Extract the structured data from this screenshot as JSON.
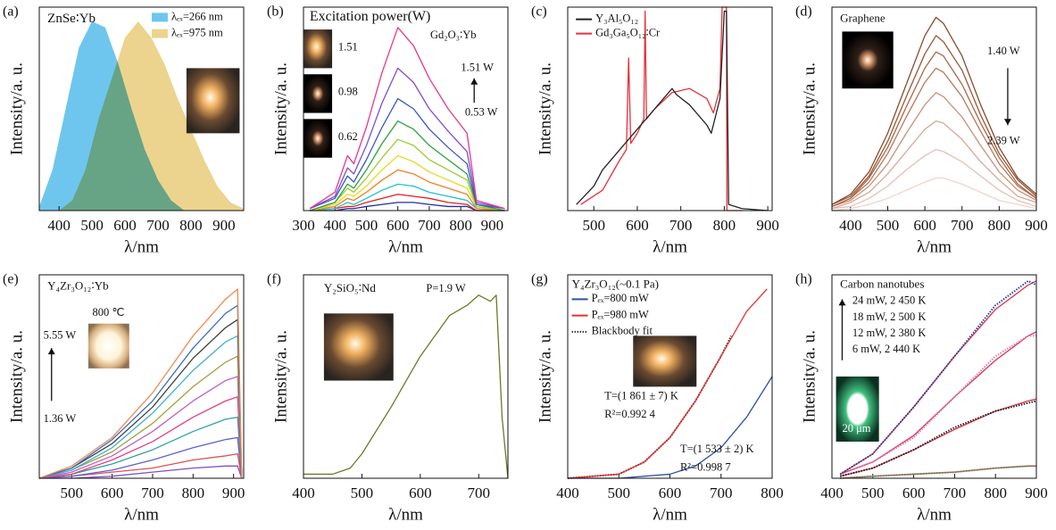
{
  "chart_data": [
    {
      "type": "area",
      "panel": "(a)",
      "title": "ZnSe∶Yb",
      "x_label": "λ/nm",
      "y_label": "Intensity/a. u.",
      "xlim": [
        340,
        960
      ],
      "xticks": [
        400,
        500,
        600,
        700,
        800,
        900
      ],
      "ylim": [
        0,
        1
      ],
      "annotations": [],
      "series": [
        {
          "name": "λₑₓ=266 nm",
          "color": "#6ec6ee",
          "x": [
            340,
            380,
            420,
            460,
            500,
            540,
            580,
            620,
            660,
            700,
            740,
            780
          ],
          "values": [
            0.02,
            0.2,
            0.5,
            0.8,
            0.93,
            0.9,
            0.72,
            0.5,
            0.3,
            0.15,
            0.05,
            0.0
          ]
        },
        {
          "name": "λₑₓ=975 nm",
          "color": "#ecd48e",
          "x": [
            400,
            440,
            480,
            520,
            560,
            600,
            640,
            680,
            720,
            760,
            800,
            840,
            880,
            920,
            960
          ],
          "values": [
            0.0,
            0.05,
            0.2,
            0.45,
            0.65,
            0.85,
            0.93,
            0.85,
            0.72,
            0.55,
            0.4,
            0.25,
            0.12,
            0.04,
            0.01
          ]
        }
      ]
    },
    {
      "type": "line",
      "panel": "(b)",
      "title": "Excitation power(W)",
      "x_label": "λ/nm",
      "y_label": "Intensity/a. u.",
      "xlim": [
        300,
        950
      ],
      "xticks": [
        300,
        400,
        500,
        600,
        700,
        800,
        900
      ],
      "ylim": [
        0,
        1
      ],
      "annotations": [
        "Gd₂O₃∶Yb",
        "1.51 W",
        "0.53 W",
        "1.51",
        "0.98",
        "0.62"
      ],
      "x": [
        320,
        400,
        440,
        460,
        500,
        550,
        600,
        650,
        700,
        760,
        820,
        850,
        940
      ],
      "series": [
        {
          "color": "#e8388a",
          "values": [
            0.01,
            0.09,
            0.27,
            0.23,
            0.41,
            0.68,
            0.9,
            0.81,
            0.65,
            0.5,
            0.38,
            0.05,
            0.01
          ]
        },
        {
          "color": "#7b4fd0",
          "values": [
            0.01,
            0.07,
            0.21,
            0.18,
            0.32,
            0.53,
            0.7,
            0.63,
            0.5,
            0.39,
            0.29,
            0.04,
            0.01
          ]
        },
        {
          "color": "#3a56c8",
          "values": [
            0.01,
            0.06,
            0.17,
            0.14,
            0.25,
            0.41,
            0.55,
            0.5,
            0.4,
            0.31,
            0.23,
            0.03,
            0.01
          ]
        },
        {
          "color": "#2ca040",
          "values": [
            0.0,
            0.04,
            0.13,
            0.11,
            0.2,
            0.33,
            0.44,
            0.4,
            0.32,
            0.25,
            0.18,
            0.03,
            0.0
          ]
        },
        {
          "color": "#9acd32",
          "values": [
            0.0,
            0.04,
            0.11,
            0.09,
            0.16,
            0.26,
            0.35,
            0.32,
            0.25,
            0.2,
            0.15,
            0.02,
            0.0
          ]
        },
        {
          "color": "#e8d820",
          "values": [
            0.0,
            0.03,
            0.08,
            0.07,
            0.12,
            0.2,
            0.27,
            0.24,
            0.19,
            0.15,
            0.11,
            0.02,
            0.0
          ]
        },
        {
          "color": "#f08020",
          "values": [
            0.0,
            0.02,
            0.06,
            0.05,
            0.09,
            0.15,
            0.2,
            0.18,
            0.14,
            0.11,
            0.08,
            0.01,
            0.0
          ]
        },
        {
          "color": "#20c0d0",
          "values": [
            0.0,
            0.01,
            0.04,
            0.03,
            0.06,
            0.1,
            0.13,
            0.12,
            0.09,
            0.07,
            0.05,
            0.01,
            0.0
          ]
        },
        {
          "color": "#e02020",
          "values": [
            0.0,
            0.01,
            0.02,
            0.02,
            0.04,
            0.06,
            0.08,
            0.07,
            0.06,
            0.04,
            0.03,
            0.0,
            0.0
          ]
        },
        {
          "color": "#2030a0",
          "values": [
            0.0,
            0.0,
            0.01,
            0.01,
            0.02,
            0.03,
            0.04,
            0.04,
            0.03,
            0.02,
            0.02,
            0.0,
            0.0
          ]
        }
      ]
    },
    {
      "type": "line",
      "panel": "(c)",
      "x_label": "λ/nm",
      "y_label": "Intensity/a. u.",
      "xlim": [
        440,
        910
      ],
      "xticks": [
        500,
        600,
        700,
        800,
        900
      ],
      "ylim": [
        0,
        1
      ],
      "annotations": [],
      "series": [
        {
          "name": "Y₃Al₅O₁₂",
          "color": "#222222",
          "x": [
            460,
            500,
            520,
            560,
            600,
            640,
            680,
            690,
            720,
            760,
            770,
            790,
            800,
            805,
            810,
            840,
            900
          ],
          "values": [
            0.03,
            0.12,
            0.2,
            0.3,
            0.4,
            0.5,
            0.6,
            0.57,
            0.52,
            0.42,
            0.38,
            0.55,
            0.98,
            0.98,
            0.03,
            0.01,
            0.0
          ]
        },
        {
          "name": "Gd₃Ga₅O₁₂∶Cr",
          "color": "#e8303a",
          "x": [
            470,
            520,
            560,
            575,
            580,
            585,
            600,
            615,
            618,
            621,
            640,
            680,
            720,
            760,
            775,
            790,
            795,
            805,
            806,
            840
          ],
          "values": [
            0.03,
            0.1,
            0.25,
            0.3,
            0.75,
            0.33,
            0.38,
            0.45,
            0.98,
            0.45,
            0.5,
            0.58,
            0.6,
            0.55,
            0.48,
            0.6,
            1.0,
            1.0,
            0.0,
            0.0
          ]
        }
      ]
    },
    {
      "type": "line",
      "panel": "(d)",
      "title": "Graphene",
      "x_label": "λ/nm",
      "y_label": "Intensity/a. u.",
      "xlim": [
        350,
        900
      ],
      "xticks": [
        400,
        500,
        600,
        700,
        800,
        900
      ],
      "ylim": [
        0,
        1
      ],
      "annotations": [
        "1.40 W",
        "2.39 W"
      ],
      "x": [
        350,
        400,
        450,
        500,
        550,
        600,
        630,
        650,
        700,
        750,
        800,
        850,
        900
      ],
      "series": [
        {
          "color": "#8a4a2a",
          "values": [
            0.03,
            0.08,
            0.19,
            0.38,
            0.62,
            0.86,
            0.95,
            0.92,
            0.76,
            0.52,
            0.31,
            0.16,
            0.08
          ]
        },
        {
          "color": "#985838",
          "values": [
            0.03,
            0.07,
            0.17,
            0.34,
            0.56,
            0.77,
            0.86,
            0.83,
            0.69,
            0.47,
            0.28,
            0.15,
            0.07
          ]
        },
        {
          "color": "#a86848",
          "values": [
            0.02,
            0.06,
            0.16,
            0.31,
            0.51,
            0.7,
            0.78,
            0.76,
            0.62,
            0.43,
            0.26,
            0.13,
            0.06
          ]
        },
        {
          "color": "#b8785a",
          "values": [
            0.02,
            0.06,
            0.14,
            0.28,
            0.46,
            0.63,
            0.7,
            0.68,
            0.56,
            0.39,
            0.23,
            0.12,
            0.06
          ]
        },
        {
          "color": "#c8907a",
          "values": [
            0.02,
            0.05,
            0.12,
            0.23,
            0.38,
            0.52,
            0.58,
            0.56,
            0.46,
            0.32,
            0.19,
            0.1,
            0.05
          ]
        },
        {
          "color": "#d8a898",
          "values": [
            0.01,
            0.04,
            0.09,
            0.18,
            0.29,
            0.4,
            0.44,
            0.43,
            0.35,
            0.24,
            0.15,
            0.07,
            0.04
          ]
        },
        {
          "color": "#e6c0b4",
          "values": [
            0.01,
            0.02,
            0.06,
            0.12,
            0.2,
            0.27,
            0.3,
            0.29,
            0.24,
            0.17,
            0.1,
            0.05,
            0.02
          ]
        },
        {
          "color": "#f0d4cc",
          "values": [
            0.0,
            0.01,
            0.03,
            0.06,
            0.1,
            0.14,
            0.16,
            0.16,
            0.13,
            0.09,
            0.05,
            0.03,
            0.01
          ]
        }
      ]
    },
    {
      "type": "line",
      "panel": "(e)",
      "title": "Y₄Zr₃O₁₂∶Yb",
      "x_label": "λ/nm",
      "y_label": "Intensity/a. u.",
      "xlim": [
        420,
        925
      ],
      "xticks": [
        500,
        600,
        700,
        800,
        900
      ],
      "ylim": [
        0,
        1
      ],
      "annotations": [
        "800 ℃",
        "5.55 W",
        "1.36 W"
      ],
      "x": [
        420,
        500,
        600,
        700,
        800,
        880,
        910,
        920
      ],
      "series": [
        {
          "color": "#f08a50",
          "values": [
            0,
            0.06,
            0.2,
            0.42,
            0.7,
            0.88,
            0.93,
            0
          ]
        },
        {
          "color": "#3a6ec0",
          "values": [
            0,
            0.05,
            0.19,
            0.38,
            0.64,
            0.81,
            0.85,
            0
          ]
        },
        {
          "color": "#404040",
          "values": [
            0,
            0.05,
            0.17,
            0.35,
            0.59,
            0.74,
            0.78,
            0
          ]
        },
        {
          "color": "#40b0d0",
          "values": [
            0,
            0.04,
            0.15,
            0.32,
            0.53,
            0.67,
            0.7,
            0
          ]
        },
        {
          "color": "#a0a040",
          "values": [
            0,
            0.04,
            0.13,
            0.27,
            0.45,
            0.57,
            0.6,
            0
          ]
        },
        {
          "color": "#c060c0",
          "values": [
            0,
            0.03,
            0.11,
            0.23,
            0.38,
            0.48,
            0.5,
            0
          ]
        },
        {
          "color": "#e04080",
          "values": [
            0,
            0.02,
            0.09,
            0.18,
            0.3,
            0.38,
            0.4,
            0
          ]
        },
        {
          "color": "#30a0a0",
          "values": [
            0,
            0.02,
            0.07,
            0.14,
            0.23,
            0.29,
            0.3,
            0
          ]
        },
        {
          "color": "#6060d0",
          "values": [
            0,
            0.01,
            0.04,
            0.09,
            0.15,
            0.19,
            0.2,
            0
          ]
        },
        {
          "color": "#e05050",
          "values": [
            0,
            0.01,
            0.03,
            0.05,
            0.09,
            0.11,
            0.12,
            0
          ]
        },
        {
          "color": "#8050c0",
          "values": [
            0,
            0,
            0.01,
            0.03,
            0.05,
            0.06,
            0.06,
            0
          ]
        }
      ]
    },
    {
      "type": "line",
      "panel": "(f)",
      "title": "Y₂SiO₅∶Nd",
      "x_label": "λ/nm",
      "y_label": "Intensity/a. u.",
      "xlim": [
        400,
        750
      ],
      "xticks": [
        400,
        500,
        600,
        700
      ],
      "ylim": [
        0,
        1
      ],
      "annotations": [
        "P=1.9 W"
      ],
      "series": [
        {
          "color": "#6b7a2a",
          "x": [
            400,
            450,
            480,
            500,
            550,
            600,
            650,
            680,
            700,
            720,
            730,
            740,
            750
          ],
          "values": [
            0.02,
            0.02,
            0.05,
            0.12,
            0.35,
            0.6,
            0.8,
            0.85,
            0.9,
            0.87,
            0.9,
            0.3,
            0.0
          ]
        }
      ]
    },
    {
      "type": "line",
      "panel": "(g)",
      "title": "Y₄Zr₃O₁₂(~0.1 Pa)",
      "x_label": "λ/nm",
      "y_label": "Intensity/a. u.",
      "xlim": [
        400,
        800
      ],
      "xticks": [
        400,
        500,
        600,
        700,
        800
      ],
      "ylim": [
        0,
        1
      ],
      "annotations": [
        "T=(1 861 ± 7) K",
        "R²=0.992 4",
        "T=(1 533 ± 2) K",
        "R²=0.998 7"
      ],
      "series": [
        {
          "name": "Pₑₓ=800 mW",
          "color": "#3050a0",
          "x": [
            400,
            500,
            600,
            650,
            700,
            750,
            800
          ],
          "values": [
            0.0,
            0.0,
            0.02,
            0.06,
            0.15,
            0.3,
            0.5
          ]
        },
        {
          "name": "Pₑₓ=980 mW",
          "color": "#e83030",
          "x": [
            400,
            500,
            550,
            600,
            650,
            700,
            750,
            790
          ],
          "values": [
            0.0,
            0.02,
            0.08,
            0.2,
            0.38,
            0.6,
            0.82,
            0.93
          ]
        },
        {
          "name": "Blackbody fit",
          "color": "#333333",
          "dashed": true,
          "x": [
            400,
            500,
            550,
            600,
            650,
            700,
            720
          ],
          "values": [
            0.0,
            0.02,
            0.08,
            0.2,
            0.38,
            0.6,
            0.7
          ]
        }
      ]
    },
    {
      "type": "line",
      "panel": "(h)",
      "title": "Carbon nanotubes",
      "x_label": "λ/nm",
      "y_label": "Intensity/a. u.",
      "xlim": [
        400,
        900
      ],
      "xticks": [
        400,
        500,
        600,
        700,
        800,
        900
      ],
      "ylim": [
        0,
        1
      ],
      "annotations": [
        "24 mW, 2 450 K",
        "18 mW, 2 500 K",
        "12 mW, 2 380 K",
        "6 mW, 2 440 K",
        "20 μm"
      ],
      "x": [
        420,
        500,
        600,
        700,
        800,
        880,
        900
      ],
      "series": [
        {
          "color": "#2840a0",
          "dashed": true,
          "values": [
            0.02,
            0.12,
            0.35,
            0.6,
            0.85,
            0.97,
            0.95
          ]
        },
        {
          "color": "#d080c0",
          "dashed": true,
          "values": [
            0.02,
            0.08,
            0.2,
            0.4,
            0.6,
            0.7,
            0.7
          ]
        },
        {
          "color": "#222222",
          "dashed": true,
          "values": [
            0.01,
            0.05,
            0.14,
            0.25,
            0.33,
            0.37,
            0.38
          ]
        },
        {
          "color": "#40a060",
          "dashed": true,
          "values": [
            0,
            0.01,
            0.02,
            0.03,
            0.05,
            0.06,
            0.06
          ]
        },
        {
          "color": "#e0304a",
          "values": [
            0.02,
            0.12,
            0.35,
            0.6,
            0.83,
            0.95,
            0.97
          ]
        },
        {
          "color": "#e0304a",
          "values": [
            0.02,
            0.08,
            0.21,
            0.4,
            0.58,
            0.7,
            0.72
          ]
        },
        {
          "color": "#e0304a",
          "values": [
            0.01,
            0.05,
            0.14,
            0.24,
            0.33,
            0.38,
            0.39
          ]
        },
        {
          "color": "#e0304a",
          "values": [
            0,
            0.01,
            0.02,
            0.03,
            0.05,
            0.06,
            0.06
          ]
        }
      ]
    }
  ]
}
